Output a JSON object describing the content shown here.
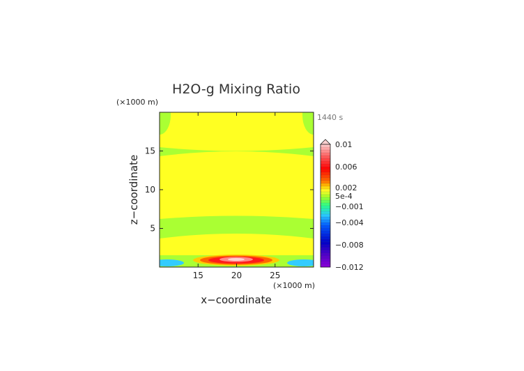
{
  "chart_data": {
    "type": "heatmap",
    "title": "H2O-g Mixing Ratio",
    "xlabel": "x−coordinate",
    "ylabel": "z−coordinate",
    "x_unit": "(×1000 m)",
    "y_unit": "(×1000 m)",
    "time_label": "1440 s",
    "xlim": [
      10,
      30
    ],
    "ylim": [
      0,
      20
    ],
    "x_ticks": [
      15,
      20,
      25
    ],
    "y_ticks": [
      5,
      10,
      15
    ],
    "colorbar": {
      "min": -0.012,
      "max": 0.01,
      "labels": [
        {
          "text": "0.01",
          "value": 0.01
        },
        {
          "text": "0.006",
          "value": 0.006
        },
        {
          "text": "0.002",
          "value": 0.002
        },
        {
          "text": "5e-4",
          "value": 0.0005
        },
        {
          "text": "−0.001",
          "value": -0.001
        },
        {
          "text": "−0.004",
          "value": -0.004
        },
        {
          "text": "−0.008",
          "value": -0.008
        },
        {
          "text": "−0.012",
          "value": -0.012
        }
      ]
    },
    "field_description": "mostly yellow (~0 to 5e-4) with green bands near z 3-6 km and 15 km, red/pink maximum near x=20 z~1 km, blue minima at the lower corners"
  }
}
